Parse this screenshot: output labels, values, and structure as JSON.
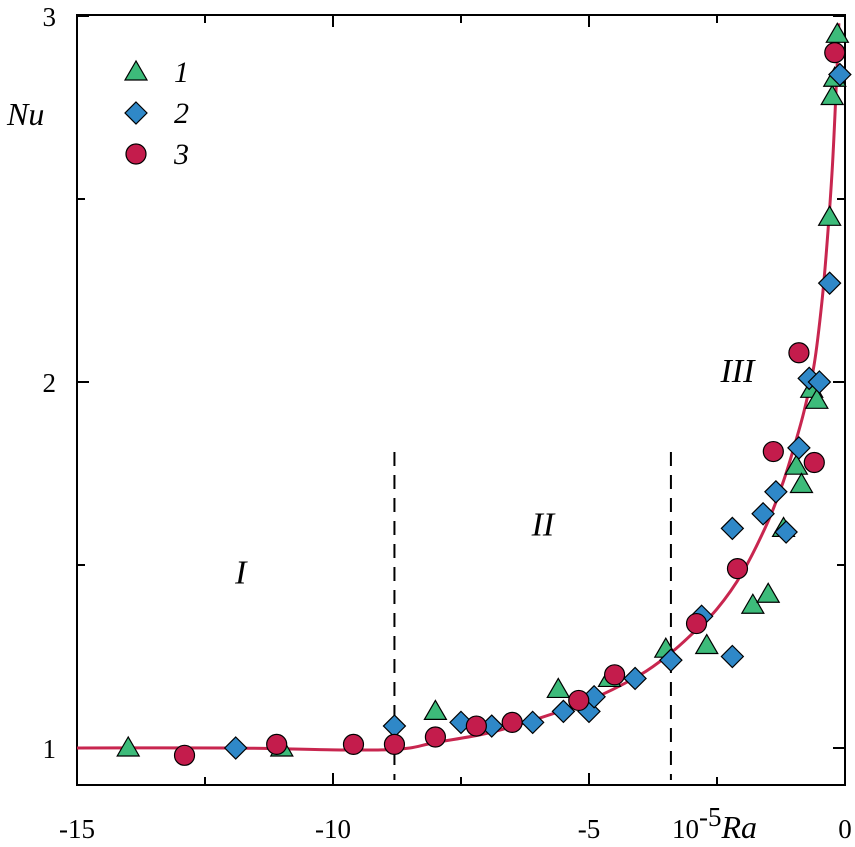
{
  "chart_data": {
    "type": "scatter",
    "xlabel_prefix": "10",
    "xlabel_exponent": "-5",
    "xlabel_var": "Ra",
    "ylabel": "Nu",
    "xlim": [
      -15,
      0
    ],
    "ylim": [
      0.97,
      3
    ],
    "x_ticks": [
      -15,
      -10,
      -5,
      0
    ],
    "x_tick_labels": [
      "-15",
      "-10",
      "-5",
      "0"
    ],
    "y_ticks": [
      1,
      2,
      3
    ],
    "y_tick_labels": [
      "1",
      "2",
      "3"
    ],
    "dividers": [
      -8.8,
      -3.4
    ],
    "regions": [
      {
        "label": "I",
        "x": -11.8,
        "y": 1.45
      },
      {
        "label": "II",
        "x": -5.9,
        "y": 1.58
      },
      {
        "label": "III",
        "x": -2.1,
        "y": 2.0
      }
    ],
    "colors": {
      "series1": "#3dbb7a",
      "series2": "#2f88c8",
      "series3": "#c41c4c",
      "curve": "#c8264f"
    },
    "series": [
      {
        "name": "1",
        "marker": "triangle",
        "points": [
          [
            -14.0,
            1.0
          ],
          [
            -11.0,
            1.0
          ],
          [
            -8.0,
            1.1
          ],
          [
            -5.6,
            1.16
          ],
          [
            -4.6,
            1.19
          ],
          [
            -3.5,
            1.27
          ],
          [
            -2.7,
            1.28
          ],
          [
            -1.8,
            1.39
          ],
          [
            -1.5,
            1.42
          ],
          [
            -1.2,
            1.6
          ],
          [
            -0.95,
            1.77
          ],
          [
            -0.85,
            1.72
          ],
          [
            -0.65,
            1.98
          ],
          [
            -0.55,
            1.95
          ],
          [
            -0.3,
            2.45
          ],
          [
            -0.25,
            2.78
          ],
          [
            -0.2,
            2.83
          ],
          [
            -0.15,
            2.95
          ]
        ]
      },
      {
        "name": "2",
        "marker": "diamond",
        "points": [
          [
            -11.9,
            1.0
          ],
          [
            -8.8,
            1.06
          ],
          [
            -7.5,
            1.07
          ],
          [
            -6.9,
            1.06
          ],
          [
            -6.1,
            1.07
          ],
          [
            -5.5,
            1.1
          ],
          [
            -5.0,
            1.1
          ],
          [
            -4.9,
            1.14
          ],
          [
            -4.1,
            1.19
          ],
          [
            -3.4,
            1.24
          ],
          [
            -2.8,
            1.36
          ],
          [
            -2.2,
            1.6
          ],
          [
            -2.2,
            1.25
          ],
          [
            -1.6,
            1.64
          ],
          [
            -1.35,
            1.7
          ],
          [
            -1.15,
            1.59
          ],
          [
            -0.9,
            1.82
          ],
          [
            -0.7,
            2.01
          ],
          [
            -0.5,
            2.0
          ],
          [
            -0.3,
            2.27
          ],
          [
            -0.1,
            2.84
          ]
        ]
      },
      {
        "name": "3",
        "marker": "circle",
        "points": [
          [
            -12.9,
            0.98
          ],
          [
            -11.1,
            1.01
          ],
          [
            -9.6,
            1.01
          ],
          [
            -8.8,
            1.01
          ],
          [
            -8.0,
            1.03
          ],
          [
            -7.2,
            1.06
          ],
          [
            -6.5,
            1.07
          ],
          [
            -5.2,
            1.13
          ],
          [
            -4.5,
            1.2
          ],
          [
            -2.9,
            1.34
          ],
          [
            -2.1,
            1.49
          ],
          [
            -1.4,
            1.81
          ],
          [
            -0.9,
            2.08
          ],
          [
            -0.6,
            1.78
          ],
          [
            -0.2,
            2.9
          ]
        ]
      }
    ],
    "curve": [
      [
        -15,
        1.0
      ],
      [
        -12,
        1.0
      ],
      [
        -10,
        0.995
      ],
      [
        -9,
        0.995
      ],
      [
        -8.5,
        1.0
      ],
      [
        -8,
        1.015
      ],
      [
        -7,
        1.04
      ],
      [
        -6,
        1.08
      ],
      [
        -5,
        1.13
      ],
      [
        -4,
        1.2
      ],
      [
        -3.4,
        1.26
      ],
      [
        -3,
        1.31
      ],
      [
        -2.5,
        1.38
      ],
      [
        -2,
        1.48
      ],
      [
        -1.5,
        1.62
      ],
      [
        -1.2,
        1.73
      ],
      [
        -1,
        1.82
      ],
      [
        -0.8,
        1.92
      ],
      [
        -0.6,
        2.05
      ],
      [
        -0.45,
        2.22
      ],
      [
        -0.35,
        2.38
      ],
      [
        -0.25,
        2.58
      ],
      [
        -0.18,
        2.78
      ],
      [
        -0.12,
        2.98
      ]
    ],
    "legend": [
      {
        "label": "1",
        "marker": "triangle"
      },
      {
        "label": "2",
        "marker": "diamond"
      },
      {
        "label": "3",
        "marker": "circle"
      }
    ]
  }
}
